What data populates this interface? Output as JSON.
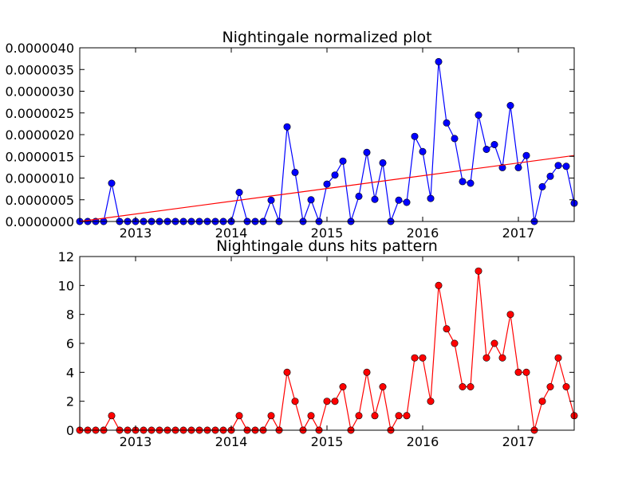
{
  "chart_data": [
    {
      "type": "line",
      "title": "Nightingale normalized plot",
      "xlabel": "",
      "ylabel": "",
      "x_start": "2012-06",
      "x_ticks": [
        "2013",
        "2014",
        "2015",
        "2016",
        "2017"
      ],
      "xlim": [
        "2012-06",
        "2017-08"
      ],
      "ylim": [
        0,
        4e-06
      ],
      "y_ticks": [
        "0.0000000",
        "0.0000005",
        "0.0000010",
        "0.0000015",
        "0.0000020",
        "0.0000025",
        "0.0000030",
        "0.0000035",
        "0.0000040"
      ],
      "grid": false,
      "series": [
        {
          "color": "#0000ff",
          "marker": "circle",
          "values": [
            0,
            0,
            0,
            0,
            8.8e-07,
            0,
            0,
            0,
            0,
            0,
            0,
            0,
            0,
            0,
            0,
            0,
            0,
            0,
            0,
            0,
            6.7e-07,
            0,
            0,
            0,
            4.9e-07,
            0,
            2.18e-06,
            1.13e-06,
            0,
            5e-07,
            0,
            8.6e-07,
            1.07e-06,
            1.39e-06,
            0,
            5.8e-07,
            1.59e-06,
            5.1e-07,
            1.35e-06,
            0,
            4.9e-07,
            4.4e-07,
            1.96e-06,
            1.61e-06,
            5.3e-07,
            3.68e-06,
            2.27e-06,
            1.91e-06,
            9.2e-07,
            8.8e-07,
            2.45e-06,
            1.66e-06,
            1.77e-06,
            1.24e-06,
            2.67e-06,
            1.24e-06,
            1.52e-06,
            0,
            8e-07,
            1.04e-06,
            1.29e-06,
            1.27e-06,
            4.2e-07
          ]
        },
        {
          "color": "#ff0000",
          "marker": "none",
          "trend": true,
          "values": [
            0,
            1.52e-06
          ]
        }
      ]
    },
    {
      "type": "line",
      "title": "Nightingale duns hits pattern",
      "xlabel": "",
      "ylabel": "",
      "x_start": "2012-06",
      "x_ticks": [
        "2013",
        "2014",
        "2015",
        "2016",
        "2017"
      ],
      "xlim": [
        "2012-06",
        "2017-08"
      ],
      "ylim": [
        0,
        12
      ],
      "y_ticks": [
        "0",
        "2",
        "4",
        "6",
        "8",
        "10",
        "12"
      ],
      "grid": false,
      "series": [
        {
          "color": "#ff0000",
          "marker": "circle",
          "values": [
            0,
            0,
            0,
            0,
            1,
            0,
            0,
            0,
            0,
            0,
            0,
            0,
            0,
            0,
            0,
            0,
            0,
            0,
            0,
            0,
            1,
            0,
            0,
            0,
            1,
            0,
            4,
            2,
            0,
            1,
            0,
            2,
            2,
            3,
            0,
            1,
            4,
            1,
            3,
            0,
            1,
            1,
            5,
            5,
            2,
            10,
            7,
            6,
            3,
            3,
            11,
            5,
            6,
            5,
            8,
            4,
            4,
            0,
            2,
            3,
            5,
            3,
            1
          ]
        }
      ]
    }
  ]
}
